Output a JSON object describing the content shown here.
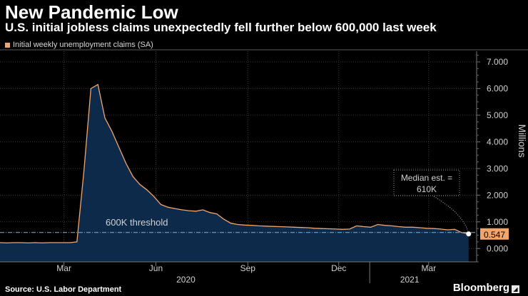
{
  "header": {
    "title": "New Pandemic Low",
    "subtitle": "U.S. initial jobless claims unexpectedly fell further below 600,000 last week"
  },
  "legend": {
    "label": "Initial weekly unemployment claims (SA)"
  },
  "footer": {
    "source": "Source: U.S. Labor Department",
    "brand": "Bloomberg"
  },
  "colors": {
    "line": "#f2a56b",
    "area": "#0e2a4a",
    "threshold": "#7fb6d6",
    "background": "#000000"
  },
  "chart_data": {
    "type": "area",
    "title": "New Pandemic Low",
    "subtitle": "U.S. initial jobless claims unexpectedly fell further below 600,000 last week",
    "ylabel": "Millions",
    "ylim": [
      -0.5,
      7.4
    ],
    "y_ticks": [
      0,
      1,
      2,
      3,
      4,
      5,
      6,
      7
    ],
    "y_tick_labels": [
      "0.000",
      "1.000",
      "2.000",
      "3.000",
      "4.000",
      "5.000",
      "6.000",
      "7.000"
    ],
    "x_ticks": [
      {
        "label": "Mar",
        "date": "2020-03-01"
      },
      {
        "label": "Jun",
        "date": "2020-06-01"
      },
      {
        "label": "Sep",
        "date": "2020-09-01"
      },
      {
        "label": "Dec",
        "date": "2020-12-01"
      },
      {
        "label": "Mar",
        "date": "2021-03-01"
      }
    ],
    "year_labels": [
      {
        "label": "2020",
        "date": "2020-07-01"
      },
      {
        "label": "2021",
        "date": "2021-02-10"
      }
    ],
    "year_separator": "2021-01-01",
    "xlim": [
      "2019-12-28",
      "2021-04-18"
    ],
    "series": [
      {
        "name": "Initial weekly unemployment claims (SA)",
        "x": [
          "2019-12-28",
          "2020-01-04",
          "2020-01-11",
          "2020-01-18",
          "2020-01-25",
          "2020-02-01",
          "2020-02-08",
          "2020-02-15",
          "2020-02-22",
          "2020-02-29",
          "2020-03-07",
          "2020-03-14",
          "2020-03-21",
          "2020-03-28",
          "2020-04-04",
          "2020-04-11",
          "2020-04-18",
          "2020-04-25",
          "2020-05-02",
          "2020-05-09",
          "2020-05-16",
          "2020-05-23",
          "2020-05-30",
          "2020-06-06",
          "2020-06-13",
          "2020-06-20",
          "2020-06-27",
          "2020-07-04",
          "2020-07-11",
          "2020-07-18",
          "2020-07-25",
          "2020-08-01",
          "2020-08-08",
          "2020-08-15",
          "2020-08-22",
          "2020-08-29",
          "2020-09-05",
          "2020-09-12",
          "2020-09-19",
          "2020-09-26",
          "2020-10-03",
          "2020-10-10",
          "2020-10-17",
          "2020-10-24",
          "2020-10-31",
          "2020-11-07",
          "2020-11-14",
          "2020-11-21",
          "2020-11-28",
          "2020-12-05",
          "2020-12-12",
          "2020-12-19",
          "2020-12-26",
          "2021-01-02",
          "2021-01-09",
          "2021-01-16",
          "2021-01-23",
          "2021-01-30",
          "2021-02-06",
          "2021-02-13",
          "2021-02-20",
          "2021-02-27",
          "2021-03-06",
          "2021-03-13",
          "2021-03-20",
          "2021-03-27",
          "2021-04-03",
          "2021-04-10"
        ],
        "y": [
          0.22,
          0.21,
          0.22,
          0.22,
          0.21,
          0.22,
          0.21,
          0.22,
          0.22,
          0.22,
          0.22,
          0.25,
          2.9,
          6.0,
          6.15,
          4.9,
          4.4,
          3.8,
          3.2,
          2.7,
          2.4,
          2.2,
          1.95,
          1.65,
          1.55,
          1.5,
          1.45,
          1.42,
          1.4,
          1.45,
          1.35,
          1.3,
          1.1,
          0.95,
          0.9,
          0.88,
          0.87,
          0.85,
          0.84,
          0.83,
          0.82,
          0.81,
          0.8,
          0.79,
          0.78,
          0.76,
          0.75,
          0.74,
          0.73,
          0.72,
          0.73,
          0.85,
          0.82,
          0.8,
          0.9,
          0.87,
          0.85,
          0.82,
          0.8,
          0.8,
          0.78,
          0.76,
          0.75,
          0.73,
          0.7,
          0.72,
          0.6,
          0.547
        ]
      }
    ],
    "threshold": {
      "value": 0.6,
      "label": "600K threshold"
    },
    "last_value_label": "0.547",
    "annotation": {
      "text_line1": "Median est. =",
      "text_line2": "610K"
    }
  }
}
